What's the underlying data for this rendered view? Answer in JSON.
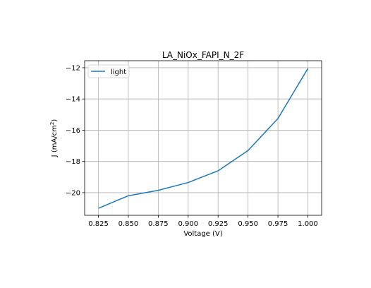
{
  "chart_data": {
    "type": "line",
    "title": "LA_NiOx_FAPI_N_2F",
    "xlabel": "Voltage (V)",
    "ylabel_main": "J (mA/cm",
    "ylabel_sup": "2",
    "ylabel_close": ")",
    "xlim": [
      0.8135,
      1.0115
    ],
    "ylim": [
      -21.45,
      -11.55
    ],
    "x_ticks": [
      0.825,
      0.85,
      0.875,
      0.9,
      0.925,
      0.95,
      0.975,
      1.0
    ],
    "x_tick_labels": [
      "0.825",
      "0.850",
      "0.875",
      "0.900",
      "0.925",
      "0.950",
      "0.975",
      "1.000"
    ],
    "y_ticks": [
      -20,
      -18,
      -16,
      -14,
      -12
    ],
    "y_tick_labels": [
      "−20",
      "−18",
      "−16",
      "−14",
      "−12"
    ],
    "grid": true,
    "legend_position": "top-left",
    "series": [
      {
        "name": "light",
        "color": "#1f77b4",
        "x": [
          0.825,
          0.85,
          0.875,
          0.9,
          0.925,
          0.95,
          0.975,
          1.0
        ],
        "y": [
          -21.0,
          -20.2,
          -19.85,
          -19.35,
          -18.6,
          -17.3,
          -15.25,
          -12.05
        ]
      }
    ]
  }
}
